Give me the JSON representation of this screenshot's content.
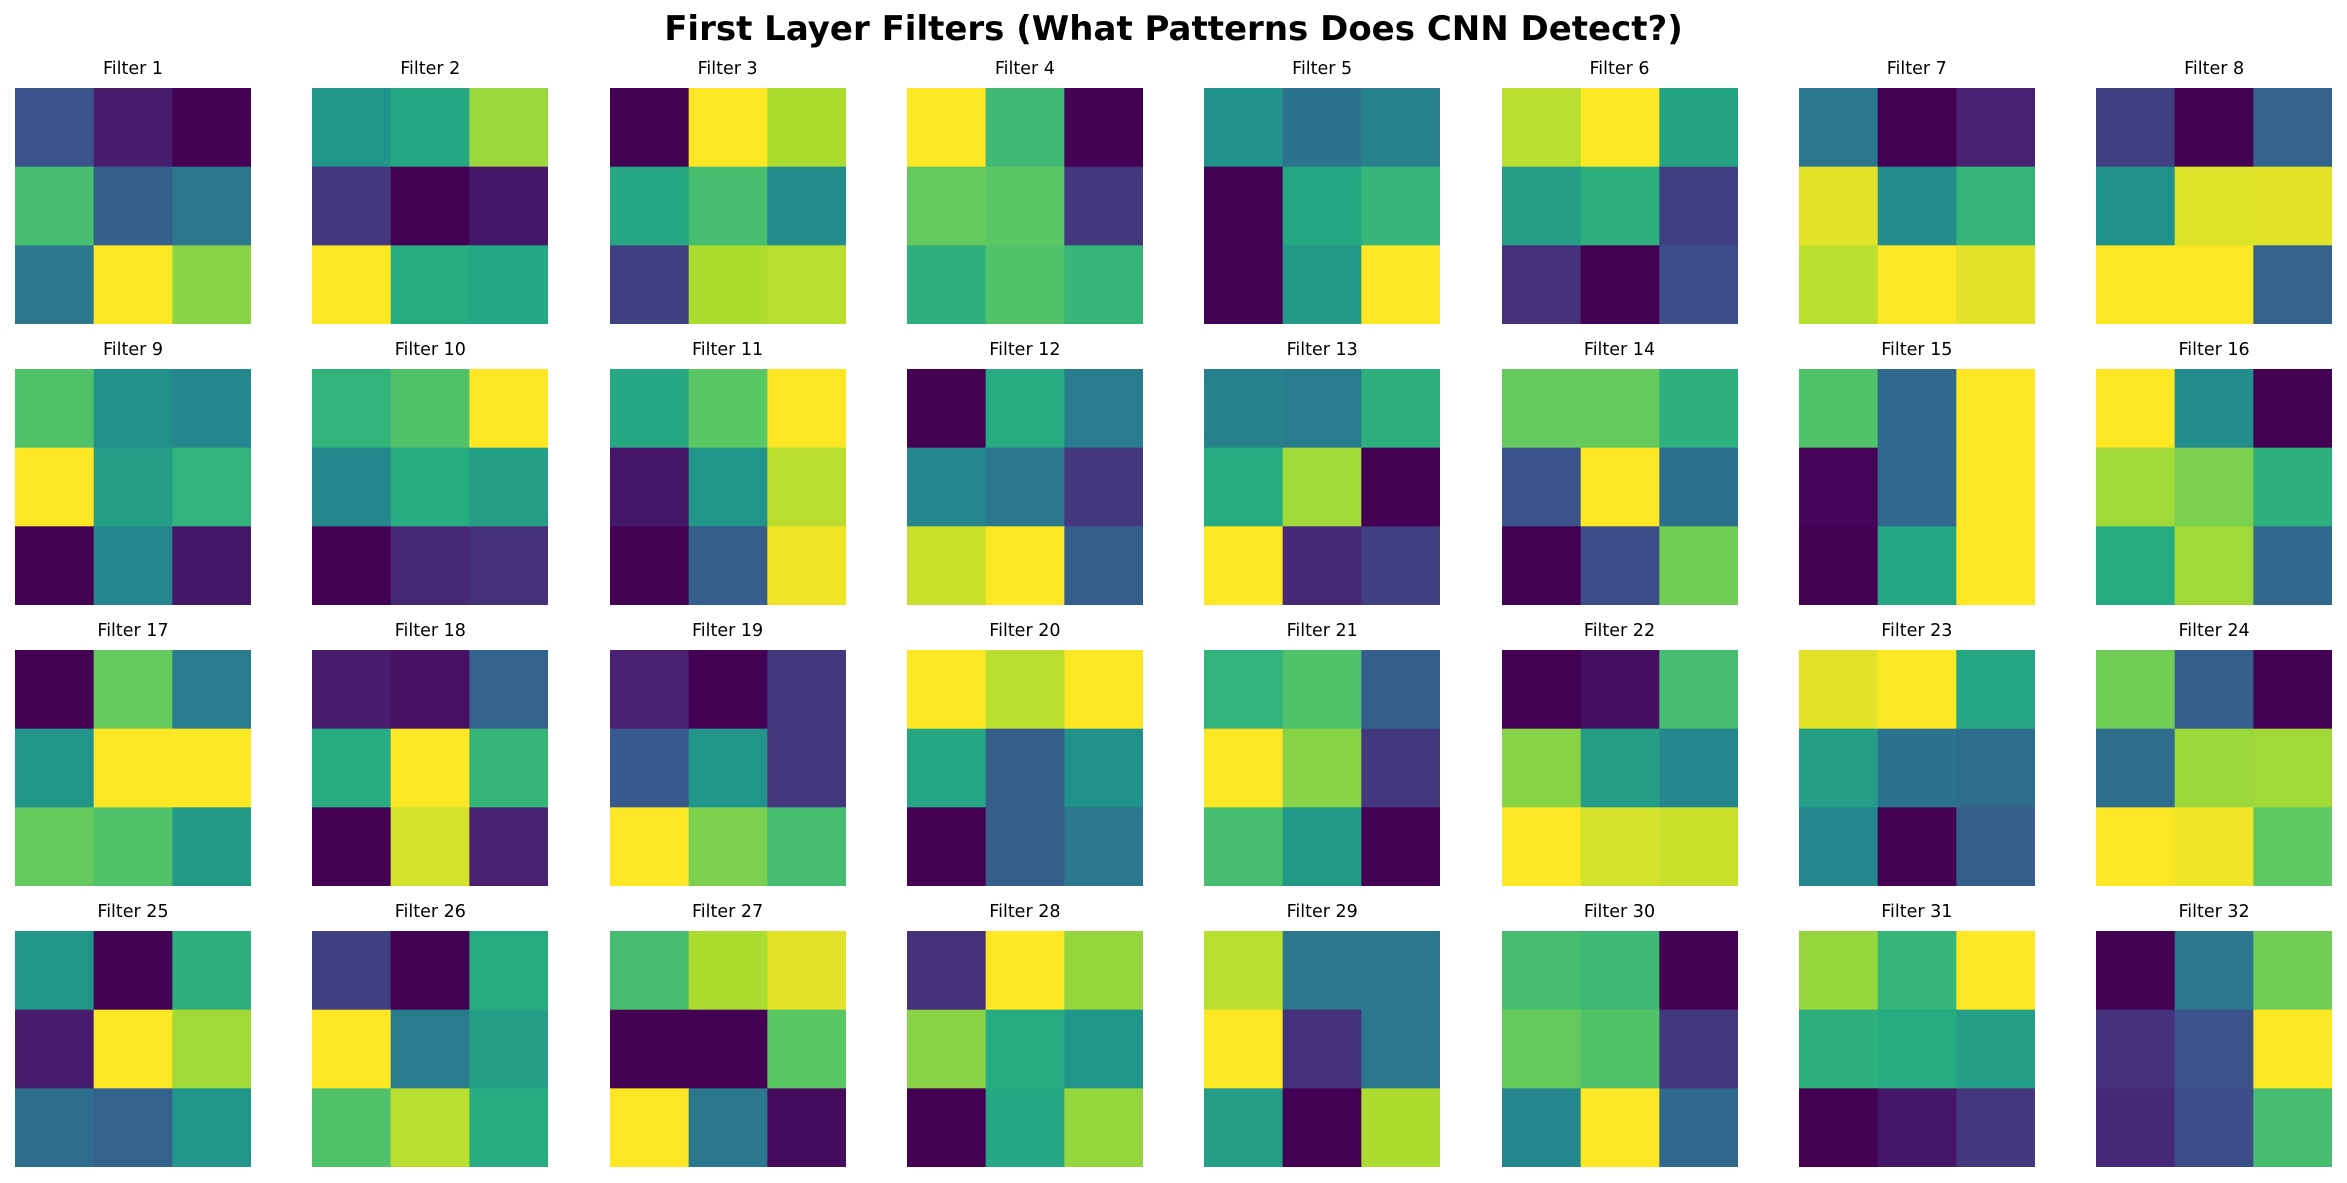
{
  "chart_data": {
    "type": "heatmap",
    "title": "First Layer Filters (What Patterns Does CNN Detect?)",
    "colormap": "viridis",
    "grid": false,
    "rows": 4,
    "cols": 8,
    "filters": [
      {
        "label": "Filter 1",
        "values": [
          [
            0.25,
            0.1,
            0.0
          ],
          [
            0.7,
            0.3,
            0.4
          ],
          [
            0.4,
            1.0,
            0.82
          ]
        ]
      },
      {
        "label": "Filter 2",
        "values": [
          [
            0.52,
            0.6,
            0.85
          ],
          [
            0.18,
            0.0,
            0.08
          ],
          [
            1.0,
            0.62,
            0.6
          ]
        ]
      },
      {
        "label": "Filter 3",
        "values": [
          [
            0.0,
            1.0,
            0.88
          ],
          [
            0.6,
            0.7,
            0.48
          ],
          [
            0.2,
            0.88,
            0.9
          ]
        ]
      },
      {
        "label": "Filter 4",
        "values": [
          [
            1.0,
            0.68,
            0.0
          ],
          [
            0.76,
            0.74,
            0.18
          ],
          [
            0.64,
            0.72,
            0.66
          ]
        ]
      },
      {
        "label": "Filter 5",
        "values": [
          [
            0.5,
            0.38,
            0.44
          ],
          [
            0.0,
            0.6,
            0.66
          ],
          [
            0.0,
            0.54,
            1.0
          ]
        ]
      },
      {
        "label": "Filter 6",
        "values": [
          [
            0.9,
            1.0,
            0.58
          ],
          [
            0.56,
            0.64,
            0.2
          ],
          [
            0.16,
            0.0,
            0.24
          ]
        ]
      },
      {
        "label": "Filter 7",
        "values": [
          [
            0.4,
            0.0,
            0.12
          ],
          [
            0.96,
            0.48,
            0.66
          ],
          [
            0.9,
            1.0,
            0.96
          ]
        ]
      },
      {
        "label": "Filter 8",
        "values": [
          [
            0.2,
            0.0,
            0.32
          ],
          [
            0.5,
            0.95,
            0.96
          ],
          [
            1.0,
            1.0,
            0.32
          ]
        ]
      },
      {
        "label": "Filter 9",
        "values": [
          [
            0.72,
            0.5,
            0.46
          ],
          [
            1.0,
            0.56,
            0.65
          ],
          [
            0.0,
            0.46,
            0.08
          ]
        ]
      },
      {
        "label": "Filter 10",
        "values": [
          [
            0.65,
            0.72,
            1.0
          ],
          [
            0.46,
            0.62,
            0.56
          ],
          [
            0.0,
            0.14,
            0.16
          ]
        ]
      },
      {
        "label": "Filter 11",
        "values": [
          [
            0.6,
            0.74,
            1.0
          ],
          [
            0.08,
            0.52,
            0.9
          ],
          [
            0.0,
            0.3,
            0.98
          ]
        ]
      },
      {
        "label": "Filter 12",
        "values": [
          [
            0.0,
            0.62,
            0.42
          ],
          [
            0.46,
            0.4,
            0.18
          ],
          [
            0.92,
            1.0,
            0.3
          ]
        ]
      },
      {
        "label": "Filter 13",
        "values": [
          [
            0.44,
            0.42,
            0.64
          ],
          [
            0.62,
            0.86,
            0.0
          ],
          [
            1.0,
            0.14,
            0.2
          ]
        ]
      },
      {
        "label": "Filter 14",
        "values": [
          [
            0.76,
            0.76,
            0.64
          ],
          [
            0.26,
            1.0,
            0.38
          ],
          [
            0.0,
            0.24,
            0.78
          ]
        ]
      },
      {
        "label": "Filter 15",
        "values": [
          [
            0.72,
            0.34,
            1.0
          ],
          [
            0.02,
            0.34,
            1.0
          ],
          [
            0.0,
            0.6,
            1.0
          ]
        ]
      },
      {
        "label": "Filter 16",
        "values": [
          [
            1.0,
            0.48,
            0.0
          ],
          [
            0.86,
            0.8,
            0.64
          ],
          [
            0.62,
            0.86,
            0.34
          ]
        ]
      },
      {
        "label": "Filter 17",
        "values": [
          [
            0.0,
            0.76,
            0.42
          ],
          [
            0.52,
            1.0,
            1.0
          ],
          [
            0.76,
            0.72,
            0.54
          ]
        ]
      },
      {
        "label": "Filter 18",
        "values": [
          [
            0.1,
            0.06,
            0.32
          ],
          [
            0.62,
            1.0,
            0.66
          ],
          [
            0.0,
            0.94,
            0.12
          ]
        ]
      },
      {
        "label": "Filter 19",
        "values": [
          [
            0.12,
            0.0,
            0.18
          ],
          [
            0.28,
            0.52,
            0.18
          ],
          [
            1.0,
            0.8,
            0.7
          ]
        ]
      },
      {
        "label": "Filter 20",
        "values": [
          [
            1.0,
            0.9,
            1.0
          ],
          [
            0.6,
            0.3,
            0.5
          ],
          [
            0.0,
            0.3,
            0.4
          ]
        ]
      },
      {
        "label": "Filter 21",
        "values": [
          [
            0.65,
            0.72,
            0.3
          ],
          [
            1.0,
            0.82,
            0.18
          ],
          [
            0.7,
            0.54,
            0.0
          ]
        ]
      },
      {
        "label": "Filter 22",
        "values": [
          [
            0.0,
            0.05,
            0.7
          ],
          [
            0.82,
            0.56,
            0.46
          ],
          [
            1.0,
            0.94,
            0.92
          ]
        ]
      },
      {
        "label": "Filter 23",
        "values": [
          [
            0.96,
            1.0,
            0.6
          ],
          [
            0.56,
            0.38,
            0.36
          ],
          [
            0.46,
            0.0,
            0.3
          ]
        ]
      },
      {
        "label": "Filter 24",
        "values": [
          [
            0.78,
            0.3,
            0.0
          ],
          [
            0.36,
            0.85,
            0.86
          ],
          [
            1.0,
            0.98,
            0.75
          ]
        ]
      },
      {
        "label": "Filter 25",
        "values": [
          [
            0.52,
            0.0,
            0.64
          ],
          [
            0.1,
            1.0,
            0.86
          ],
          [
            0.36,
            0.32,
            0.52
          ]
        ]
      },
      {
        "label": "Filter 26",
        "values": [
          [
            0.2,
            0.0,
            0.62
          ],
          [
            1.0,
            0.42,
            0.56
          ],
          [
            0.72,
            0.9,
            0.62
          ]
        ]
      },
      {
        "label": "Filter 27",
        "values": [
          [
            0.7,
            0.88,
            0.96
          ],
          [
            0.0,
            0.0,
            0.74
          ],
          [
            1.0,
            0.4,
            0.04
          ]
        ]
      },
      {
        "label": "Filter 28",
        "values": [
          [
            0.16,
            1.0,
            0.84
          ],
          [
            0.82,
            0.62,
            0.52
          ],
          [
            0.0,
            0.6,
            0.84
          ]
        ]
      },
      {
        "label": "Filter 29",
        "values": [
          [
            0.9,
            0.4,
            0.4
          ],
          [
            1.0,
            0.16,
            0.4
          ],
          [
            0.56,
            0.0,
            0.88
          ]
        ]
      },
      {
        "label": "Filter 30",
        "values": [
          [
            0.7,
            0.68,
            0.0
          ],
          [
            0.76,
            0.72,
            0.18
          ],
          [
            0.46,
            1.0,
            0.34
          ]
        ]
      },
      {
        "label": "Filter 31",
        "values": [
          [
            0.84,
            0.66,
            1.0
          ],
          [
            0.64,
            0.62,
            0.56
          ],
          [
            0.0,
            0.08,
            0.18
          ]
        ]
      },
      {
        "label": "Filter 32",
        "values": [
          [
            0.0,
            0.4,
            0.78
          ],
          [
            0.16,
            0.26,
            1.0
          ],
          [
            0.14,
            0.24,
            0.7
          ]
        ]
      }
    ]
  }
}
